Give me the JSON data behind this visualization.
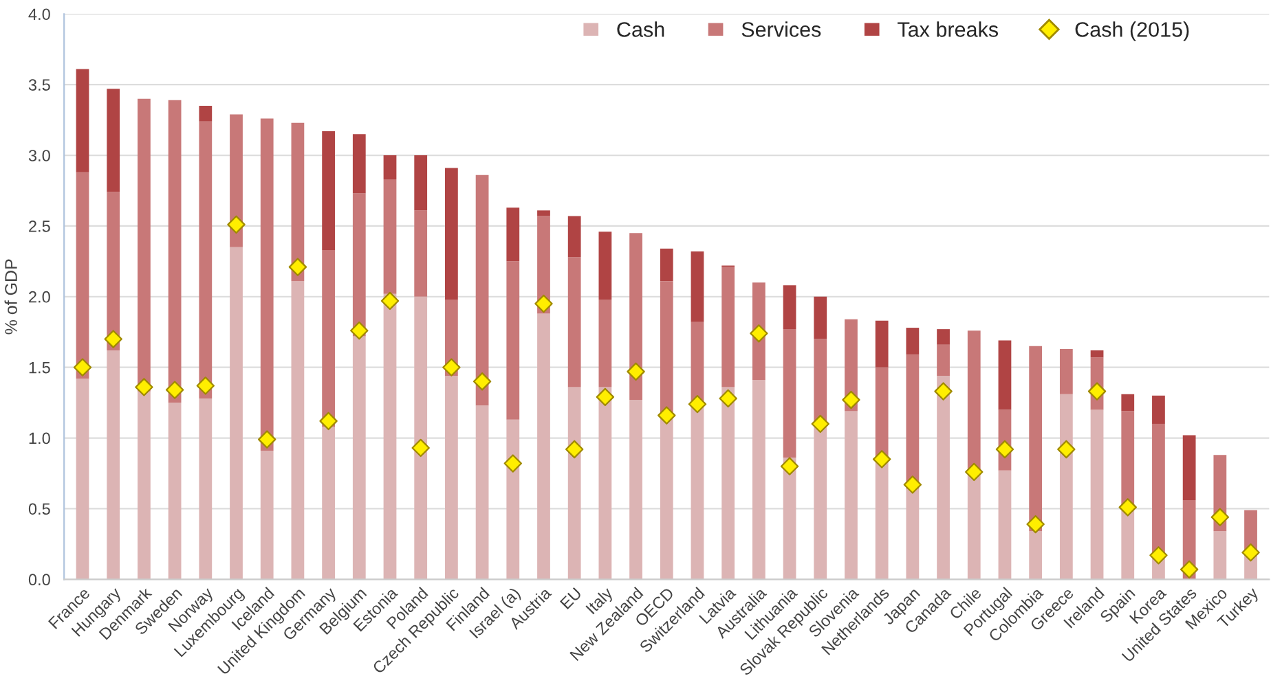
{
  "chart_data": {
    "type": "bar",
    "stacked": true,
    "ylabel": "% of GDP",
    "categories": [
      "France",
      "Hungary",
      "Denmark",
      "Sweden",
      "Norway",
      "Luxembourg",
      "Iceland",
      "United Kingdom",
      "Germany",
      "Belgium",
      "Estonia",
      "Poland",
      "Czech Republic",
      "Finland",
      "Israel (a)",
      "Austria",
      "EU",
      "Italy",
      "New Zealand",
      "OECD",
      "Switzerland",
      "Latvia",
      "Australia",
      "Lithuania",
      "Slovak Republic",
      "Slovenia",
      "Netherlands",
      "Japan",
      "Canada",
      "Chile",
      "Portugal",
      "Colombia",
      "Greece",
      "Ireland",
      "Spain",
      "Korea",
      "United States",
      "Mexico",
      "Turkey"
    ],
    "series": [
      {
        "name": "Cash",
        "color": "#dcb4b4",
        "values": [
          1.42,
          1.62,
          1.33,
          1.25,
          1.28,
          2.35,
          0.91,
          2.11,
          1.08,
          1.72,
          2.02,
          2.0,
          1.44,
          1.23,
          1.13,
          1.88,
          1.36,
          1.36,
          1.27,
          1.15,
          1.22,
          1.36,
          1.41,
          0.86,
          1.08,
          1.19,
          0.83,
          0.64,
          1.44,
          0.74,
          0.77,
          0.34,
          1.31,
          1.2,
          0.49,
          0.15,
          null,
          0.34,
          0.17
        ]
      },
      {
        "name": "Services",
        "color": "#c87878",
        "values": [
          1.46,
          1.12,
          2.07,
          2.14,
          1.96,
          0.94,
          2.35,
          1.12,
          1.25,
          1.01,
          0.81,
          0.61,
          0.54,
          1.63,
          1.12,
          0.69,
          0.92,
          0.62,
          1.18,
          0.96,
          0.6,
          0.85,
          0.69,
          0.91,
          0.62,
          0.65,
          0.67,
          0.95,
          0.22,
          1.02,
          0.43,
          1.31,
          0.32,
          0.37,
          0.7,
          0.95,
          0.56,
          0.54,
          0.32
        ]
      },
      {
        "name": "Tax breaks",
        "color": "#b04444",
        "values": [
          0.73,
          0.73,
          0,
          0,
          0.11,
          0,
          0,
          0,
          0.84,
          0.42,
          0.17,
          0.39,
          0.93,
          0,
          0.38,
          0.04,
          0.29,
          0.48,
          0,
          0.23,
          0.5,
          0.01,
          0,
          0.31,
          0.3,
          0,
          0.33,
          0.19,
          0.11,
          0,
          0.49,
          0,
          0,
          0.05,
          0.12,
          0.2,
          0.46,
          0,
          0
        ]
      },
      {
        "name": "Cash (2015)",
        "type": "scatter",
        "marker": "diamond",
        "color": "#ffee00",
        "values": [
          1.5,
          1.7,
          1.36,
          1.34,
          1.37,
          2.51,
          0.99,
          2.21,
          1.12,
          1.76,
          1.97,
          0.93,
          1.5,
          1.4,
          0.82,
          1.95,
          0.92,
          1.29,
          1.47,
          1.16,
          1.24,
          1.28,
          1.74,
          0.8,
          1.1,
          1.27,
          0.85,
          0.67,
          1.33,
          0.76,
          0.92,
          0.39,
          0.92,
          1.33,
          0.51,
          0.17,
          0.07,
          0.44,
          0.19
        ]
      }
    ],
    "ylim": [
      0,
      4.0
    ],
    "yticks": [
      {
        "value": 0,
        "label": "0.0"
      },
      {
        "value": 0.5,
        "label": "0.5"
      },
      {
        "value": 1,
        "label": "1.0"
      },
      {
        "value": 1.5,
        "label": "1.5"
      },
      {
        "value": 2,
        "label": "2.0"
      },
      {
        "value": 2.5,
        "label": "2.5"
      },
      {
        "value": 3,
        "label": "3.0"
      },
      {
        "value": 3.5,
        "label": "3.5"
      },
      {
        "value": 4,
        "label": "4.0"
      }
    ],
    "grid": "y",
    "legend": "top right"
  }
}
